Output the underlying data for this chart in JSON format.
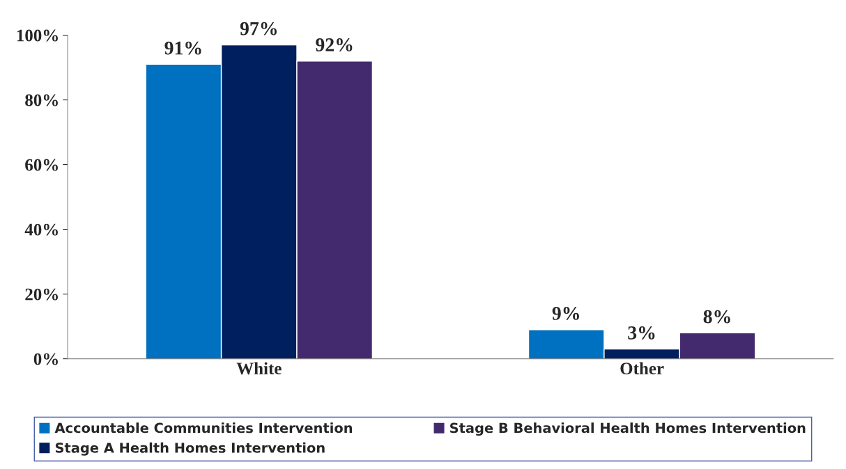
{
  "chart_data": {
    "type": "bar",
    "categories": [
      "White",
      "Other"
    ],
    "series": [
      {
        "name": "Accountable Communities Intervention",
        "color": "#0070c0",
        "values": [
          91,
          9
        ],
        "value_labels": [
          "91%",
          "9%"
        ]
      },
      {
        "name": "Stage A Health Homes Intervention",
        "color": "#001f5f",
        "values": [
          97,
          3
        ],
        "value_labels": [
          "97%",
          "3%"
        ]
      },
      {
        "name": "Stage B Behavioral Health Homes Intervention",
        "color": "#432a6e",
        "values": [
          92,
          8
        ],
        "value_labels": [
          "92%",
          "8%"
        ]
      }
    ],
    "ylim": [
      0,
      100
    ],
    "yticks": [
      {
        "value": 0,
        "label": "0%"
      },
      {
        "value": 20,
        "label": "20%"
      },
      {
        "value": 40,
        "label": "40%"
      },
      {
        "value": 60,
        "label": "60%"
      },
      {
        "value": 80,
        "label": "80%"
      },
      {
        "value": 100,
        "label": "100%"
      }
    ],
    "legend": "bottom",
    "grid": false
  }
}
